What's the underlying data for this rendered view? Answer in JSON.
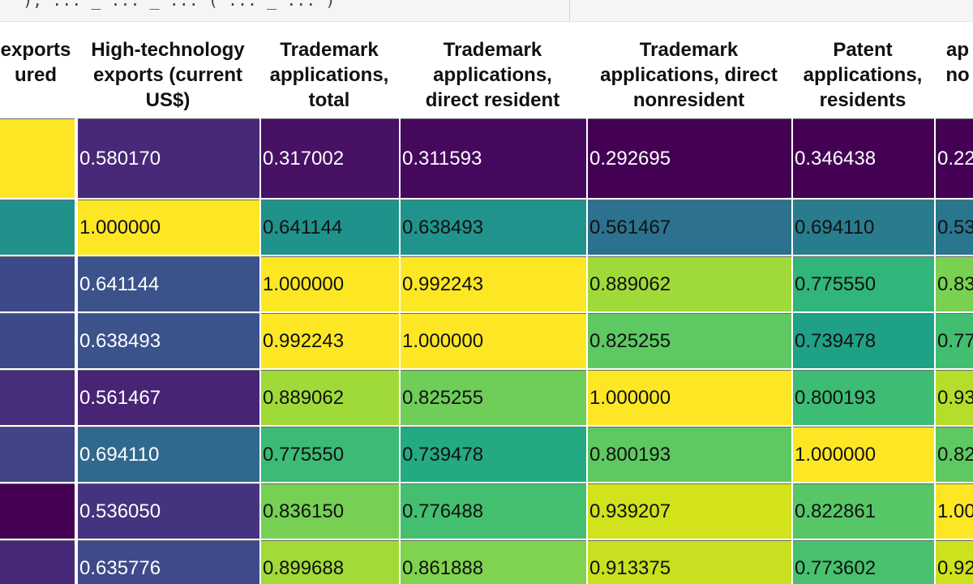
{
  "code_fragment": "  ), ... _ ... _ ... ( ... _ ... )",
  "columns": [
    {
      "label": "exports\nured"
    },
    {
      "label": "High-technology\nexports (current\nUS$)"
    },
    {
      "label": "Trademark\napplications,\ntotal"
    },
    {
      "label": "Trademark\napplications,\ndirect resident"
    },
    {
      "label": "Trademark\napplications, direct\nnonresident"
    },
    {
      "label": "Patent\napplications,\nresidents"
    },
    {
      "label": "ap\nno"
    }
  ],
  "rows": [
    [
      "",
      "0.580170",
      "0.317002",
      "0.311593",
      "0.292695",
      "0.346438",
      "0.22"
    ],
    [
      "",
      "1.000000",
      "0.641144",
      "0.638493",
      "0.561467",
      "0.694110",
      "0.53"
    ],
    [
      "",
      "0.641144",
      "1.000000",
      "0.992243",
      "0.889062",
      "0.775550",
      "0.83"
    ],
    [
      "",
      "0.638493",
      "0.992243",
      "1.000000",
      "0.825255",
      "0.739478",
      "0.77"
    ],
    [
      "",
      "0.561467",
      "0.889062",
      "0.825255",
      "1.000000",
      "0.800193",
      "0.93"
    ],
    [
      "",
      "0.694110",
      "0.775550",
      "0.739478",
      "0.800193",
      "1.000000",
      "0.82"
    ],
    [
      "",
      "0.536050",
      "0.836150",
      "0.776488",
      "0.939207",
      "0.822861",
      "1.00"
    ],
    [
      "",
      "0.635776",
      "0.899688",
      "0.861888",
      "0.913375",
      "0.773602",
      "0.92"
    ]
  ],
  "cell_colors": [
    [
      "#fde725",
      "#482878",
      "#471164",
      "#46085c",
      "#440154",
      "#440154",
      "#440154"
    ],
    [
      "#21918c",
      "#fde725",
      "#20928c",
      "#20938c",
      "#2c728e",
      "#287c8e",
      "#2a768e"
    ],
    [
      "#3e4989",
      "#3b528b",
      "#fde725",
      "#fde725",
      "#a0da39",
      "#31b57b",
      "#7ad151"
    ],
    [
      "#3e4989",
      "#3b528b",
      "#fde725",
      "#fde725",
      "#5ec962",
      "#1fa187",
      "#42be71"
    ],
    [
      "#472d7b",
      "#482475",
      "#a0da39",
      "#6ece58",
      "#fde725",
      "#3dbc74",
      "#b5de2b"
    ],
    [
      "#414487",
      "#31688e",
      "#3bbb75",
      "#24aa83",
      "#5ec962",
      "#fde725",
      "#5ec962"
    ],
    [
      "#440154",
      "#46337f",
      "#75d054",
      "#44bf70",
      "#d2e21b",
      "#56c667",
      "#fde725"
    ],
    [
      "#482878",
      "#3e4a89",
      "#a2da37",
      "#7fd34e",
      "#c8e020",
      "#47c16e",
      "#cde11d"
    ]
  ],
  "light_text_cells": [
    [
      false,
      true,
      true,
      true,
      true,
      true,
      true
    ],
    [
      false,
      false,
      false,
      false,
      false,
      false,
      false
    ],
    [
      false,
      true,
      false,
      false,
      false,
      false,
      false
    ],
    [
      false,
      true,
      false,
      false,
      false,
      false,
      false
    ],
    [
      false,
      true,
      false,
      false,
      false,
      false,
      false
    ],
    [
      false,
      true,
      false,
      false,
      false,
      false,
      false
    ],
    [
      false,
      true,
      false,
      false,
      false,
      false,
      false
    ],
    [
      false,
      true,
      false,
      false,
      false,
      false,
      false
    ]
  ]
}
